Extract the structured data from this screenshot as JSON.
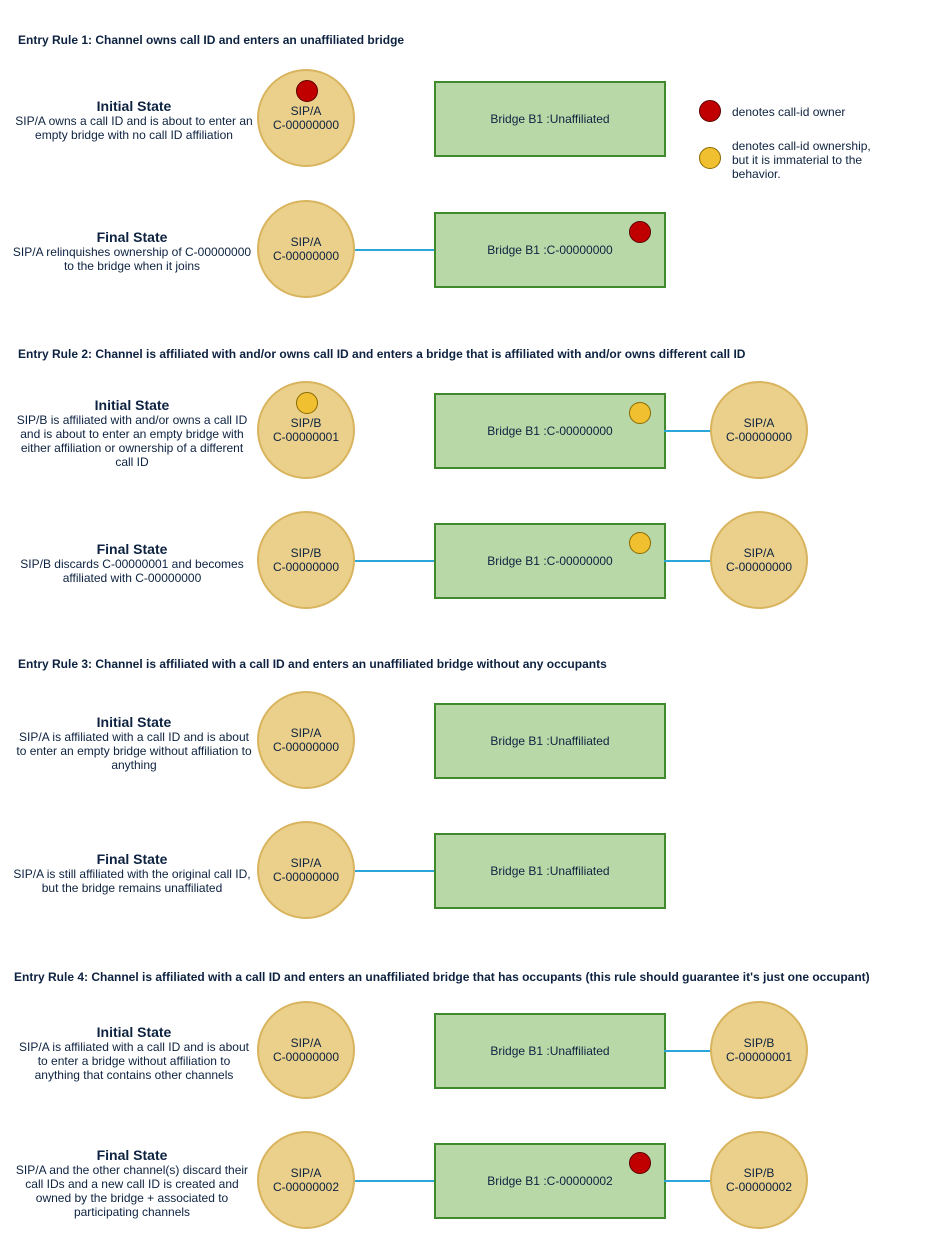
{
  "legend": {
    "owner": "denotes call-id owner",
    "immaterial": "denotes call-id ownership, but it is immaterial to the behavior."
  },
  "rules": [
    {
      "title": "Entry Rule 1: Channel owns call ID and enters an unaffiliated bridge",
      "initial": {
        "title": "Initial State",
        "desc": "SIP/A owns a call ID and is about to enter an empty bridge with no call ID affiliation",
        "channel": {
          "name": "SIP/A",
          "callid": "C-00000000"
        },
        "bridge": {
          "name": "Bridge B1 :",
          "callid": "Unaffiliated"
        }
      },
      "final": {
        "title": "Final State",
        "desc": "SIP/A relinquishes ownership of C-00000000 to the bridge when it joins",
        "channel": {
          "name": "SIP/A",
          "callid": "C-00000000"
        },
        "bridge": {
          "name": "Bridge B1 :",
          "callid": "C-00000000"
        }
      }
    },
    {
      "title": "Entry Rule 2: Channel is affiliated with and/or owns call ID and enters a bridge that is affiliated with and/or owns different call ID",
      "initial": {
        "title": "Initial State",
        "desc": "SIP/B is affiliated with and/or owns a call ID and is about to enter an empty bridge with either affiliation or ownership of a different call ID",
        "channel": {
          "name": "SIP/B",
          "callid": "C-00000001"
        },
        "bridge": {
          "name": "Bridge B1 :",
          "callid": "C-00000000"
        },
        "other": {
          "name": "SIP/A",
          "callid": "C-00000000"
        }
      },
      "final": {
        "title": "Final State",
        "desc": "SIP/B discards C-00000001 and becomes affiliated with C-00000000",
        "channel": {
          "name": "SIP/B",
          "callid": "C-00000000"
        },
        "bridge": {
          "name": "Bridge B1 :",
          "callid": "C-00000000"
        },
        "other": {
          "name": "SIP/A",
          "callid": "C-00000000"
        }
      }
    },
    {
      "title": "Entry Rule 3: Channel is affiliated with a call ID and enters an unaffiliated bridge without any occupants",
      "initial": {
        "title": "Initial State",
        "desc": "SIP/A is affiliated with a call ID and is about to enter an empty bridge without affiliation to anything",
        "channel": {
          "name": "SIP/A",
          "callid": "C-00000000"
        },
        "bridge": {
          "name": "Bridge B1 :",
          "callid": "Unaffiliated"
        }
      },
      "final": {
        "title": "Final State",
        "desc": "SIP/A is still affiliated with the original call ID, but the bridge remains unaffiliated",
        "channel": {
          "name": "SIP/A",
          "callid": "C-00000000"
        },
        "bridge": {
          "name": "Bridge B1 :",
          "callid": "Unaffiliated"
        }
      }
    },
    {
      "title": "Entry Rule 4: Channel is affiliated with a call ID and enters an unaffiliated bridge that has occupants (this rule should guarantee it's just one occupant)",
      "initial": {
        "title": "Initial State",
        "desc": "SIP/A is affiliated with a call ID and is about to enter a bridge without affiliation to anything that contains other channels",
        "channel": {
          "name": "SIP/A",
          "callid": "C-00000000"
        },
        "bridge": {
          "name": "Bridge B1 :",
          "callid": "Unaffiliated"
        },
        "other": {
          "name": "SIP/B",
          "callid": "C-00000001"
        }
      },
      "final": {
        "title": "Final State",
        "desc": "SIP/A and the other channel(s) discard their call IDs and a new call ID is created and owned by the bridge + associated to participating channels",
        "channel": {
          "name": "SIP/A",
          "callid": "C-00000002"
        },
        "bridge": {
          "name": "Bridge B1 :",
          "callid": "C-00000002"
        },
        "other": {
          "name": "SIP/B",
          "callid": "C-00000002"
        }
      }
    }
  ],
  "colors": {
    "channel_fill": "#ead08a",
    "bridge_fill": "#b9d8a8",
    "bridge_border": "#3f8a2c",
    "link": "#2aa7d8",
    "owner_dot": "#c00000",
    "immaterial_dot": "#f0c030"
  }
}
